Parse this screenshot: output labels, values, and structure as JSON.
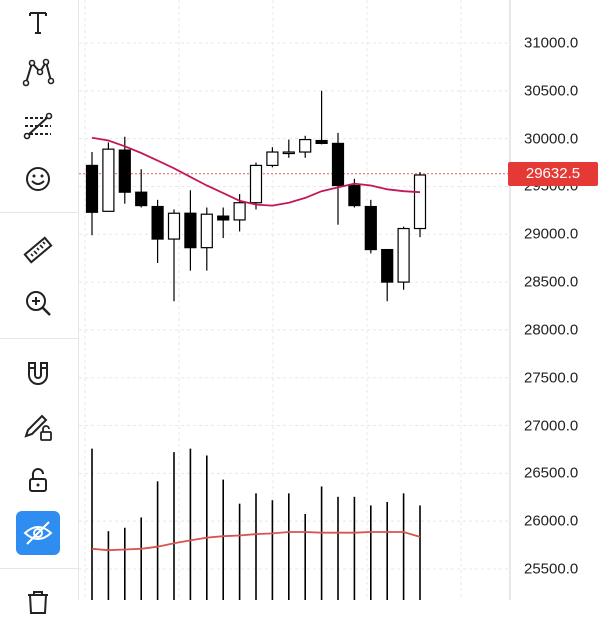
{
  "toolbar": {
    "tools": [
      {
        "name": "text-tool",
        "icon": "text-icon"
      },
      {
        "name": "pattern-tool",
        "icon": "pattern-icon"
      },
      {
        "name": "fib-tool",
        "icon": "fib-levels-icon"
      },
      {
        "name": "emoji-tool",
        "icon": "smiley-icon"
      },
      {
        "name": "ruler-tool",
        "icon": "ruler-icon"
      },
      {
        "name": "zoom-tool",
        "icon": "zoom-in-icon"
      },
      {
        "name": "magnet-tool",
        "icon": "magnet-icon"
      },
      {
        "name": "lock-drawing-tool",
        "icon": "pencil-lock-icon"
      },
      {
        "name": "lock-tool",
        "icon": "unlock-icon"
      },
      {
        "name": "hide-drawings-tool",
        "icon": "eye-hidden-icon",
        "active": true
      },
      {
        "name": "delete-tool",
        "icon": "trash-icon"
      }
    ],
    "accent_color": "#2f8cf0"
  },
  "price_axis": {
    "ticks": [
      "31000.0",
      "30500.0",
      "30000.0",
      "29500.0",
      "29000.0",
      "28500.0",
      "28000.0",
      "27500.0",
      "27000.0",
      "26500.0",
      "26000.0",
      "25500.0"
    ],
    "current_price": "29632.5",
    "current_price_color": "#e53935"
  },
  "chart_data": {
    "type": "candlestick",
    "up_color": "#ffffff",
    "down_color": "#000000",
    "ma_color": "#c2185b",
    "volume_ma_color": "#d9534f",
    "ylim": [
      25300,
      31200
    ],
    "current_price": 29632.5,
    "candles": [
      {
        "o": 29720,
        "h": 29860,
        "l": 28990,
        "c": 29230
      },
      {
        "o": 29240,
        "h": 29960,
        "l": 29240,
        "c": 29890
      },
      {
        "o": 29880,
        "h": 30020,
        "l": 29320,
        "c": 29440
      },
      {
        "o": 29440,
        "h": 29680,
        "l": 29280,
        "c": 29300
      },
      {
        "o": 29290,
        "h": 29360,
        "l": 28700,
        "c": 28950
      },
      {
        "o": 28950,
        "h": 29260,
        "l": 28300,
        "c": 29220
      },
      {
        "o": 29220,
        "h": 29460,
        "l": 28620,
        "c": 28860
      },
      {
        "o": 28860,
        "h": 29280,
        "l": 28620,
        "c": 29210
      },
      {
        "o": 29190,
        "h": 29280,
        "l": 28960,
        "c": 29150
      },
      {
        "o": 29150,
        "h": 29420,
        "l": 29030,
        "c": 29330
      },
      {
        "o": 29330,
        "h": 29750,
        "l": 29260,
        "c": 29720
      },
      {
        "o": 29720,
        "h": 29910,
        "l": 29700,
        "c": 29860
      },
      {
        "o": 29850,
        "h": 29990,
        "l": 29800,
        "c": 29860
      },
      {
        "o": 29860,
        "h": 30030,
        "l": 29800,
        "c": 29990
      },
      {
        "o": 29980,
        "h": 30500,
        "l": 29940,
        "c": 29950
      },
      {
        "o": 29950,
        "h": 30060,
        "l": 29100,
        "c": 29510
      },
      {
        "o": 29510,
        "h": 29580,
        "l": 29280,
        "c": 29300
      },
      {
        "o": 29290,
        "h": 29360,
        "l": 28800,
        "c": 28840
      },
      {
        "o": 28840,
        "h": 28840,
        "l": 28300,
        "c": 28500
      },
      {
        "o": 28500,
        "h": 29080,
        "l": 28420,
        "c": 29060
      },
      {
        "o": 29060,
        "h": 29650,
        "l": 28970,
        "c": 29620
      }
    ],
    "ma": [
      30010,
      29980,
      29920,
      29850,
      29770,
      29690,
      29600,
      29510,
      29430,
      29350,
      29310,
      29300,
      29330,
      29380,
      29450,
      29490,
      29530,
      29510,
      29470,
      29450,
      29440
    ],
    "volume": [
      88,
      40,
      42,
      48,
      69,
      86,
      88,
      84,
      70,
      56,
      62,
      58,
      62,
      50,
      66,
      60,
      60,
      55,
      57,
      62,
      55
    ],
    "volume_ma": [
      56,
      54,
      55,
      56,
      59,
      64,
      68,
      72,
      74,
      75,
      77,
      78,
      80,
      80,
      79,
      79,
      79,
      80,
      80,
      80,
      73
    ]
  }
}
